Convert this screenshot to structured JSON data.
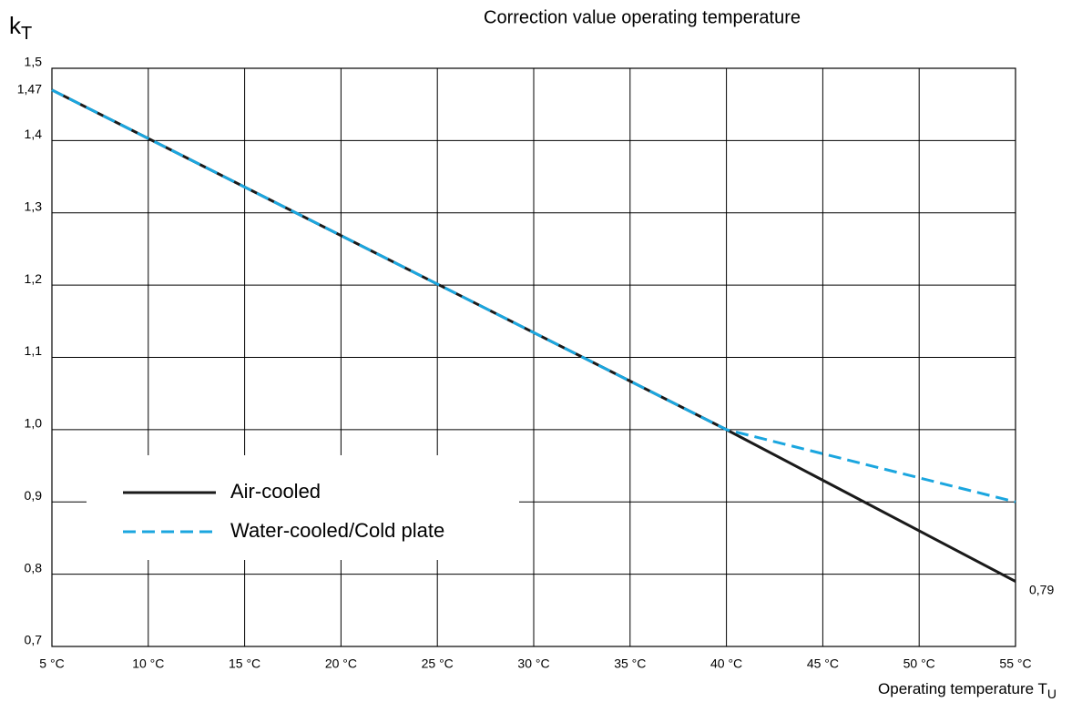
{
  "chart_data": {
    "type": "line",
    "title": "Correction value operating temperature",
    "ylabel": "k",
    "ylabel_sub": "T",
    "xlabel": "Operating temperature T",
    "xlabel_sub": "U",
    "x": [
      5,
      40,
      55
    ],
    "series": [
      {
        "name": "Air-cooled",
        "color": "#1a1a1a",
        "dash": false,
        "values": [
          1.47,
          1.0,
          0.79
        ]
      },
      {
        "name": "Water-cooled/Cold plate",
        "color": "#1ba6df",
        "dash": true,
        "values": [
          1.47,
          1.0,
          0.9
        ]
      }
    ],
    "xlim": [
      5,
      55
    ],
    "xticks": [
      {
        "value": 5,
        "label": "5 °C"
      },
      {
        "value": 10,
        "label": "10 °C"
      },
      {
        "value": 15,
        "label": "15 °C"
      },
      {
        "value": 20,
        "label": "20 °C"
      },
      {
        "value": 25,
        "label": "25 °C"
      },
      {
        "value": 30,
        "label": "30 °C"
      },
      {
        "value": 35,
        "label": "35 °C"
      },
      {
        "value": 40,
        "label": "40 °C"
      },
      {
        "value": 45,
        "label": "45 °C"
      },
      {
        "value": 50,
        "label": "50 °C"
      },
      {
        "value": 55,
        "label": "55 °C"
      }
    ],
    "ylim": [
      0.7,
      1.5
    ],
    "yticks": [
      {
        "value": 0.7,
        "label": "0,7"
      },
      {
        "value": 0.8,
        "label": "0,8"
      },
      {
        "value": 0.9,
        "label": "0,9"
      },
      {
        "value": 1.0,
        "label": "1,0"
      },
      {
        "value": 1.1,
        "label": "1,1"
      },
      {
        "value": 1.2,
        "label": "1,2"
      },
      {
        "value": 1.3,
        "label": "1,3"
      },
      {
        "value": 1.4,
        "label": "1,4"
      },
      {
        "value": 1.5,
        "label": "1,5"
      }
    ],
    "y_annotations": [
      {
        "value": 1.47,
        "label": "1,47",
        "side": "left"
      },
      {
        "value": 0.79,
        "label": "0,79",
        "side": "right"
      }
    ],
    "grid": true,
    "legend": "lower left"
  }
}
